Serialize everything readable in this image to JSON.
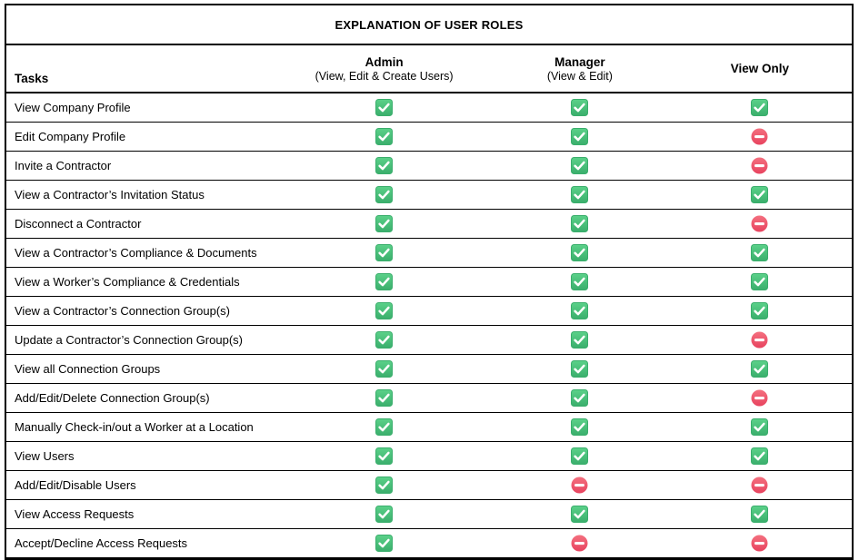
{
  "title": "EXPLANATION OF USER ROLES",
  "colors": {
    "check_green": "#45BE78",
    "check_green_light": "#5BD189",
    "check_green_dark": "#3AAE6C",
    "deny_pink": "#F0536E",
    "deny_pink_light": "#F4707F",
    "deny_pink_dark": "#E8435F",
    "border_black": "#000000",
    "background": "#FFFFFF"
  },
  "icons": {
    "allowed": {
      "name": "check-icon",
      "meaning": "permitted"
    },
    "denied": {
      "name": "no-entry-icon",
      "meaning": "not permitted"
    }
  },
  "table": {
    "columns": [
      {
        "label": "Tasks",
        "sublabel": ""
      },
      {
        "label": "Admin",
        "sublabel": "(View, Edit & Create Users)"
      },
      {
        "label": "Manager",
        "sublabel": "(View & Edit)"
      },
      {
        "label": "View Only",
        "sublabel": ""
      }
    ],
    "rows": [
      {
        "task": "View Company Profile",
        "admin": "allowed",
        "manager": "allowed",
        "view_only": "allowed"
      },
      {
        "task": "Edit Company Profile",
        "admin": "allowed",
        "manager": "allowed",
        "view_only": "denied"
      },
      {
        "task": "Invite a Contractor",
        "admin": "allowed",
        "manager": "allowed",
        "view_only": "denied"
      },
      {
        "task": "View a Contractor’s Invitation Status",
        "admin": "allowed",
        "manager": "allowed",
        "view_only": "allowed"
      },
      {
        "task": "Disconnect a Contractor",
        "admin": "allowed",
        "manager": "allowed",
        "view_only": "denied"
      },
      {
        "task": "View a Contractor’s Compliance & Documents",
        "admin": "allowed",
        "manager": "allowed",
        "view_only": "allowed"
      },
      {
        "task": "View a Worker’s Compliance & Credentials",
        "admin": "allowed",
        "manager": "allowed",
        "view_only": "allowed"
      },
      {
        "task": "View a Contractor’s Connection Group(s)",
        "admin": "allowed",
        "manager": "allowed",
        "view_only": "allowed"
      },
      {
        "task": "Update a Contractor’s Connection Group(s)",
        "admin": "allowed",
        "manager": "allowed",
        "view_only": "denied"
      },
      {
        "task": "View all Connection Groups",
        "admin": "allowed",
        "manager": "allowed",
        "view_only": "allowed"
      },
      {
        "task": "Add/Edit/Delete Connection Group(s)",
        "admin": "allowed",
        "manager": "allowed",
        "view_only": "denied"
      },
      {
        "task": "Manually Check-in/out a Worker at a Location",
        "admin": "allowed",
        "manager": "allowed",
        "view_only": "allowed"
      },
      {
        "task": "View Users",
        "admin": "allowed",
        "manager": "allowed",
        "view_only": "allowed"
      },
      {
        "task": "Add/Edit/Disable Users",
        "admin": "allowed",
        "manager": "denied",
        "view_only": "denied"
      },
      {
        "task": "View Access Requests",
        "admin": "allowed",
        "manager": "allowed",
        "view_only": "allowed"
      },
      {
        "task": "Accept/Decline Access Requests",
        "admin": "allowed",
        "manager": "denied",
        "view_only": "denied"
      }
    ]
  }
}
